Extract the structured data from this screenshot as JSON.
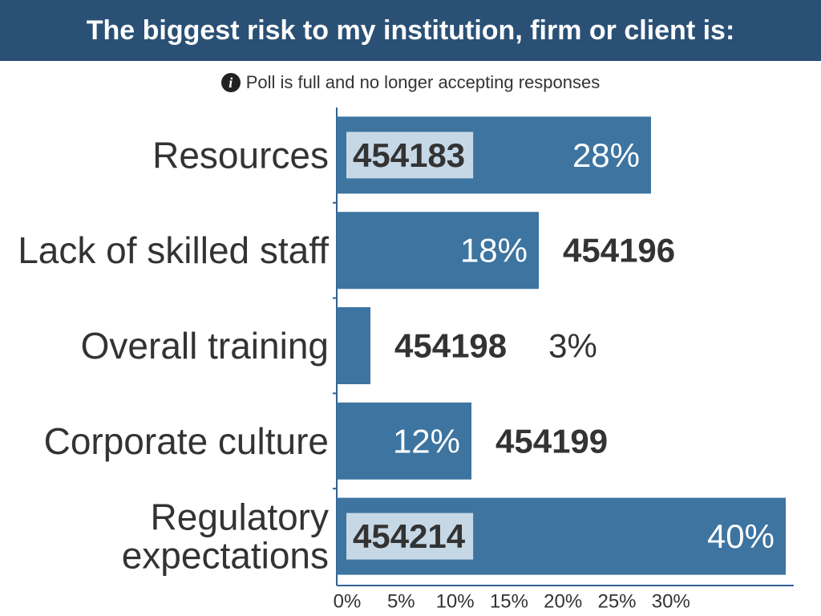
{
  "title": "The biggest risk to my institution, firm or client is:",
  "notice": {
    "icon": "info-icon",
    "text": "Poll is full and no longer accepting responses"
  },
  "colors": {
    "header_bg": "#2a5075",
    "bar": "#3d74a0",
    "axis": "#2e6394",
    "id_box": "#c6d8e6",
    "text": "#333333"
  },
  "chart_data": {
    "type": "bar",
    "orientation": "horizontal",
    "categories": [
      "Resources",
      "Lack of skilled staff",
      "Overall training",
      "Corporate culture",
      "Regulatory expectations"
    ],
    "category_lines": [
      [
        "Resources"
      ],
      [
        "Lack of skilled staff"
      ],
      [
        "Overall training"
      ],
      [
        "Corporate culture"
      ],
      [
        "Regulatory",
        "expectations"
      ]
    ],
    "values": [
      28,
      18,
      3,
      12,
      40
    ],
    "value_labels": [
      "28%",
      "18%",
      "3%",
      "12%",
      "40%"
    ],
    "ids": [
      "454183",
      "454196",
      "454198",
      "454199",
      "454214"
    ],
    "xlim": [
      0,
      40
    ],
    "xticks": [
      0,
      5,
      10,
      15,
      20,
      25,
      30
    ],
    "xtick_labels": [
      "0%",
      "5%",
      "10%",
      "15%",
      "20%",
      "25%",
      "30%"
    ],
    "grid": false,
    "legend": "none"
  }
}
